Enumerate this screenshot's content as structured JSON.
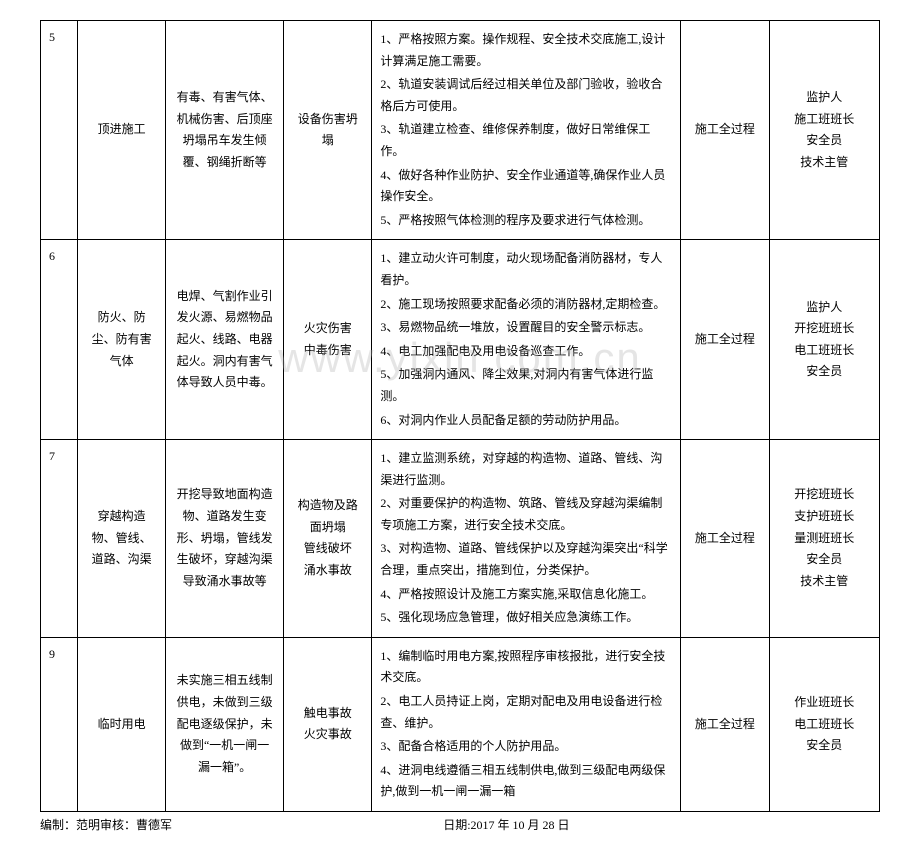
{
  "watermark": "www.yixin.com.cn",
  "rows": [
    {
      "num": "5",
      "col_a": "顶进施工",
      "col_b": "有毒、有害气体、机械伤害、后顶座坍塌吊车发生倾覆、钢绳折断等",
      "col_c": "设备伤害坍塌",
      "measures": [
        "1、严格按照方案。操作规程、安全技术交底施工,设计计算满足施工需要。",
        "2、轨道安装调试后经过相关单位及部门验收，验收合格后方可使用。",
        "3、轨道建立检查、维修保养制度，做好日常维保工作。",
        "4、做好各种作业防护、安全作业通道等,确保作业人员操作安全。",
        "5、严格按照气体检测的程序及要求进行气体检测。"
      ],
      "col_e": "施工全过程",
      "col_f": "监护人\n施工班班长\n安全员\n技术主管"
    },
    {
      "num": "6",
      "col_a": "防火、防尘、防有害气体",
      "col_b": "电焊、气割作业引发火源、易燃物品起火、线路、电器起火。洞内有害气体导致人员中毒。",
      "col_c": "火灾伤害\n中毒伤害",
      "measures": [
        "1、建立动火许可制度，动火现场配备消防器材，专人看护。",
        "2、施工现场按照要求配备必须的消防器材,定期检查。",
        "3、易燃物品统一堆放，设置醒目的安全警示标志。",
        "4、电工加强配电及用电设备巡查工作。",
        "5、加强洞内通风、降尘效果,对洞内有害气体进行监测。",
        "6、对洞内作业人员配备足额的劳动防护用品。"
      ],
      "col_e": "施工全过程",
      "col_f": "监护人\n开挖班班长\n电工班班长\n安全员"
    },
    {
      "num": "7",
      "col_a": "穿越构造物、管线、道路、沟渠",
      "col_b": "开挖导致地面构造物、道路发生变形、坍塌，管线发生破坏，穿越沟渠导致涌水事故等",
      "col_c": "构造物及路面坍塌\n管线破坏\n涌水事故",
      "measures": [
        "1、建立监测系统，对穿越的构造物、道路、管线、沟渠进行监测。",
        "2、对重要保护的构造物、筑路、管线及穿越沟渠编制专项施工方案，进行安全技术交底。",
        "3、对构造物、道路、管线保护以及穿越沟渠突出“科学合理，重点突出，措施到位，分类保护。",
        "4、严格按照设计及施工方案实施,采取信息化施工。",
        "5、强化现场应急管理，做好相关应急演练工作。"
      ],
      "col_e": "施工全过程",
      "col_f": "开挖班班长\n支护班班长\n量测班班长\n安全员\n技术主管"
    },
    {
      "num": "9",
      "col_a": "临时用电",
      "col_b": "未实施三相五线制供电，未做到三级配电逐级保护，未做到“一机一闸一漏一箱”。",
      "col_c": "触电事故\n火灾事故",
      "measures": [
        "1、编制临时用电方案,按照程序审核报批，进行安全技术交底。",
        "2、电工人员持证上岗，定期对配电及用电设备进行检查、维护。",
        "3、配备合格适用的个人防护用品。",
        "4、进洞电线遵循三相五线制供电,做到三级配电两级保护,做到一机一闸一漏一箱"
      ],
      "col_e": "施工全过程",
      "col_f": "作业班班长\n电工班班长\n安全员"
    }
  ],
  "footer": {
    "left": "编制：范明审核：曹德军",
    "right": "日期:2017 年 10 月 28 日"
  }
}
